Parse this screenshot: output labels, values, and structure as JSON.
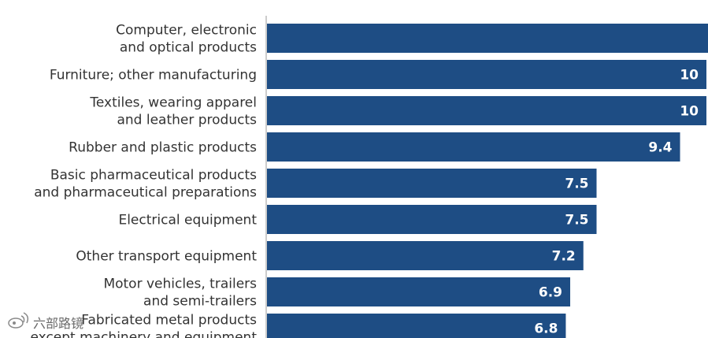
{
  "chart_data": {
    "type": "bar",
    "orientation": "horizontal",
    "categories": [
      [
        "Computer, electronic",
        "and optical products"
      ],
      [
        "Furniture; other manufacturing"
      ],
      [
        "Textiles, wearing apparel",
        "and leather products"
      ],
      [
        "Rubber and plastic products"
      ],
      [
        "Basic pharmaceutical products",
        "and pharmaceutical preparations"
      ],
      [
        "Electrical equipment"
      ],
      [
        "Other transport equipment"
      ],
      [
        "Motor vehicles, trailers",
        "and semi-trailers"
      ],
      [
        "Fabricated metal products",
        "except machinery and equipment"
      ]
    ],
    "values": [
      null,
      10,
      10,
      9.4,
      7.5,
      7.5,
      7.2,
      6.9,
      6.8
    ],
    "value_labels": [
      "",
      "10",
      "10",
      "9.4",
      "7.5",
      "7.5",
      "7.2",
      "6.9",
      "6.8"
    ],
    "xlim": [
      0,
      10.5
    ],
    "grid": false,
    "legend": "none"
  },
  "colors": {
    "bar": "#1e4d84",
    "label": "#333333",
    "value_label": "#ffffff",
    "axis": "#999999"
  },
  "watermark": {
    "icon": "weibo-logo-icon",
    "text": "六部路镜"
  }
}
